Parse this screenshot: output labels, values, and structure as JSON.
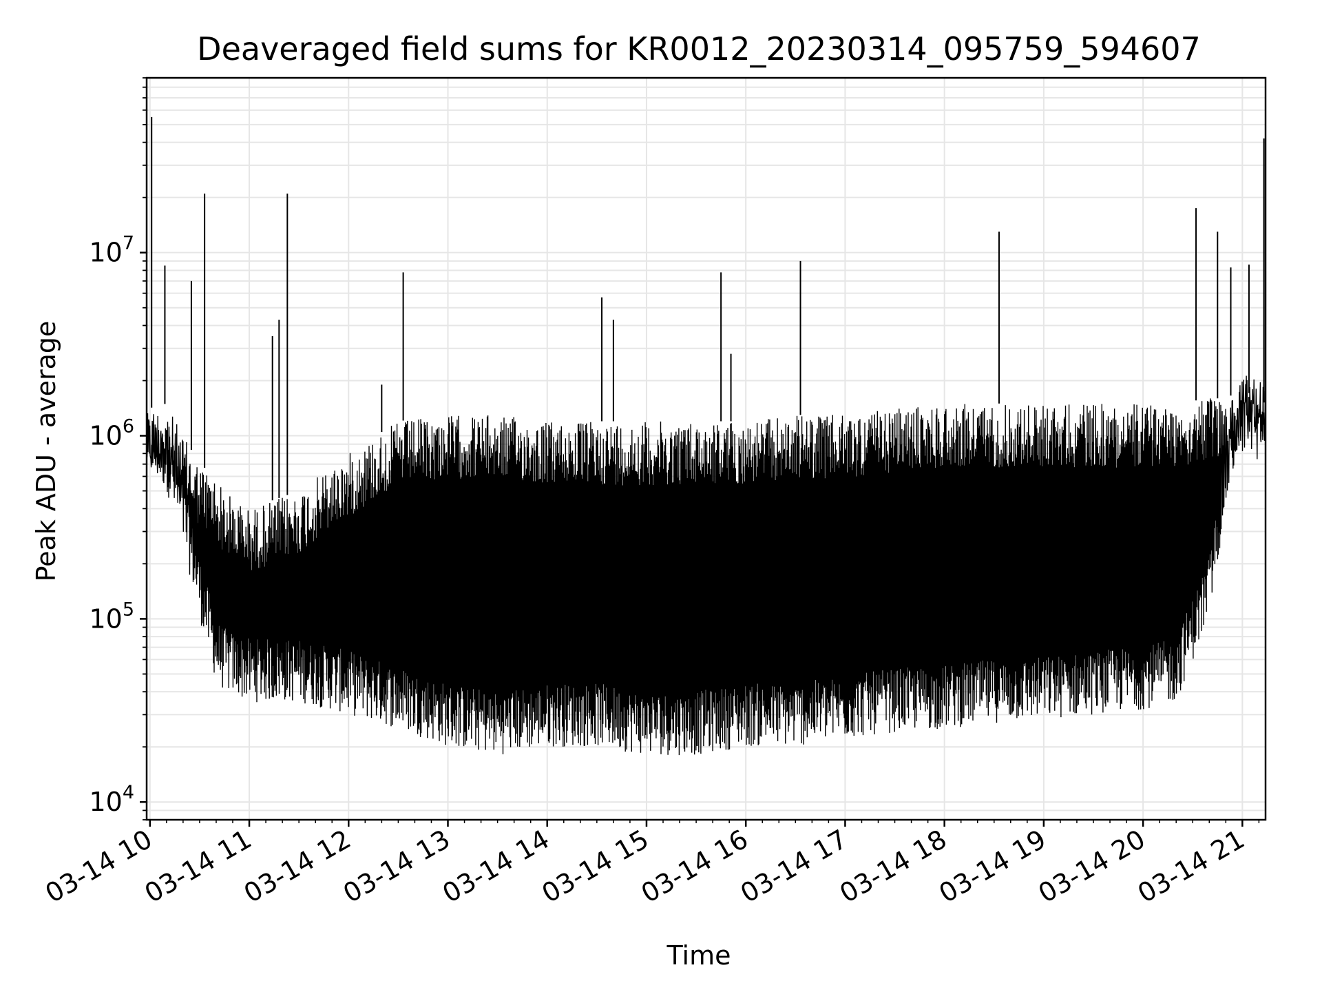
{
  "chart_data": {
    "type": "line",
    "title": "Deaveraged field sums for KR0012_20230314_095759_594607",
    "xlabel": "Time",
    "ylabel": "Peak ADU - average",
    "yscale": "log",
    "ylim": [
      8000,
      90000000
    ],
    "xlim": [
      "03-14 09:58",
      "03-14 21:14"
    ],
    "grid": true,
    "line_color": "#000000",
    "grid_color": "#e6e6e6",
    "x_ticks": [
      "03-14 10",
      "03-14 11",
      "03-14 12",
      "03-14 13",
      "03-14 14",
      "03-14 15",
      "03-14 16",
      "03-14 17",
      "03-14 18",
      "03-14 19",
      "03-14 20",
      "03-14 21"
    ],
    "y_ticks": [
      {
        "base": "10",
        "exp": "4"
      },
      {
        "base": "10",
        "exp": "5"
      },
      {
        "base": "10",
        "exp": "6"
      },
      {
        "base": "10",
        "exp": "7"
      }
    ],
    "envelope": {
      "x": [
        "03-14 09:58",
        "03-14 10:10",
        "03-14 10:20",
        "03-14 10:30",
        "03-14 10:40",
        "03-14 10:45",
        "03-14 11:00",
        "03-14 11:30",
        "03-14 12:00",
        "03-14 12:30",
        "03-14 13:00",
        "03-14 13:30",
        "03-14 14:00",
        "03-14 14:30",
        "03-14 15:00",
        "03-14 15:30",
        "03-14 16:00",
        "03-14 16:30",
        "03-14 17:00",
        "03-14 17:30",
        "03-14 18:00",
        "03-14 18:30",
        "03-14 19:00",
        "03-14 19:30",
        "03-14 20:00",
        "03-14 20:20",
        "03-14 20:40",
        "03-14 20:50",
        "03-14 21:00",
        "03-14 21:14"
      ],
      "upper": [
        1400000,
        1500000,
        1000000,
        700000,
        600000,
        500000,
        400000,
        500000,
        800000,
        1200000,
        1300000,
        1300000,
        1200000,
        1200000,
        1200000,
        1200000,
        1200000,
        1300000,
        1300000,
        1400000,
        1500000,
        1500000,
        1500000,
        1500000,
        1500000,
        1500000,
        1600000,
        1600000,
        1800000,
        1500000
      ],
      "lower": [
        600000,
        500000,
        250000,
        100000,
        45000,
        40000,
        35000,
        35000,
        30000,
        25000,
        20000,
        18000,
        20000,
        20000,
        18000,
        18000,
        20000,
        20000,
        22000,
        24000,
        25000,
        27000,
        28000,
        30000,
        32000,
        35000,
        100000,
        400000,
        1000000,
        900000
      ]
    },
    "spikes": [
      {
        "x": "03-14 10:01",
        "y": 55000000
      },
      {
        "x": "03-14 10:09",
        "y": 8500000
      },
      {
        "x": "03-14 10:25",
        "y": 7000000
      },
      {
        "x": "03-14 10:33",
        "y": 21000000
      },
      {
        "x": "03-14 11:14",
        "y": 3500000
      },
      {
        "x": "03-14 11:18",
        "y": 4300000
      },
      {
        "x": "03-14 11:23",
        "y": 21000000
      },
      {
        "x": "03-14 12:20",
        "y": 1900000
      },
      {
        "x": "03-14 12:33",
        "y": 7800000
      },
      {
        "x": "03-14 14:33",
        "y": 5700000
      },
      {
        "x": "03-14 14:40",
        "y": 4300000
      },
      {
        "x": "03-14 15:45",
        "y": 7800000
      },
      {
        "x": "03-14 15:51",
        "y": 2800000
      },
      {
        "x": "03-14 16:33",
        "y": 9000000
      },
      {
        "x": "03-14 18:33",
        "y": 13000000
      },
      {
        "x": "03-14 20:32",
        "y": 17500000
      },
      {
        "x": "03-14 20:45",
        "y": 13000000
      },
      {
        "x": "03-14 20:53",
        "y": 8300000
      },
      {
        "x": "03-14 21:04",
        "y": 8600000
      },
      {
        "x": "03-14 21:13",
        "y": 42000000
      }
    ]
  }
}
